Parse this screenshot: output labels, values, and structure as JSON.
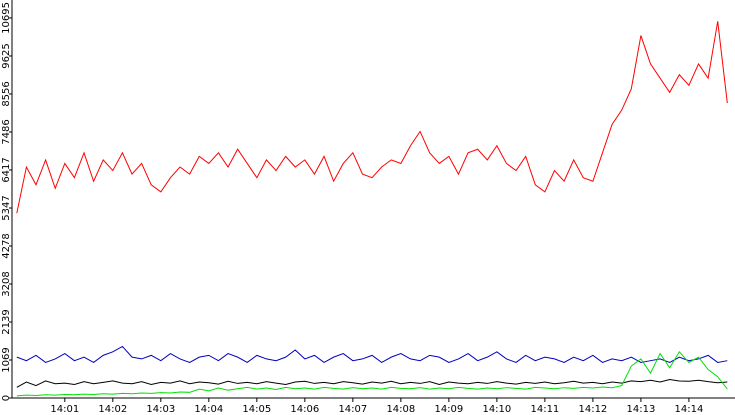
{
  "chart_data": {
    "type": "line",
    "x": [
      0,
      0.2,
      0.4,
      0.6,
      0.8,
      1,
      1.2,
      1.4,
      1.6,
      1.8,
      2,
      2.2,
      2.4,
      2.6,
      2.8,
      3,
      3.2,
      3.4,
      3.6,
      3.8,
      4,
      4.2,
      4.4,
      4.6,
      4.8,
      5,
      5.2,
      5.4,
      5.6,
      5.8,
      6,
      6.2,
      6.4,
      6.6,
      6.8,
      7,
      7.2,
      7.4,
      7.6,
      7.8,
      8,
      8.2,
      8.4,
      8.6,
      8.8,
      9,
      9.2,
      9.4,
      9.6,
      9.8,
      10,
      10.2,
      10.4,
      10.6,
      10.8,
      11,
      11.2,
      11.4,
      11.6,
      11.8,
      12,
      12.2,
      12.4,
      12.6,
      12.8,
      13,
      13.2,
      13.4,
      13.6,
      13.8,
      14,
      14.2,
      14.4,
      14.6,
      14.8
    ],
    "series": [
      {
        "color": "#ff0000",
        "values": [
          5200,
          6500,
          6000,
          6700,
          5900,
          6600,
          6200,
          6900,
          6100,
          6700,
          6400,
          6900,
          6300,
          6600,
          6000,
          5800,
          6200,
          6500,
          6300,
          6800,
          6600,
          6900,
          6500,
          7000,
          6600,
          6200,
          6700,
          6400,
          6800,
          6500,
          6700,
          6300,
          6800,
          6100,
          6600,
          6900,
          6300,
          6200,
          6500,
          6700,
          6600,
          7100,
          7500,
          6900,
          6600,
          6800,
          6300,
          6900,
          7000,
          6700,
          7100,
          6600,
          6400,
          6800,
          6000,
          5800,
          6400,
          6100,
          6700,
          6200,
          6100,
          6900,
          7700,
          8100,
          8700,
          10200,
          9400,
          9000,
          8600,
          9100,
          8800,
          9400,
          9000,
          10600,
          8300
        ]
      },
      {
        "color": "#0000c0",
        "values": [
          1150,
          1050,
          1200,
          1000,
          1100,
          1250,
          1050,
          1150,
          1000,
          1200,
          1300,
          1450,
          1150,
          1100,
          1200,
          1050,
          1250,
          1100,
          1000,
          1150,
          1200,
          1050,
          1250,
          1150,
          1000,
          1200,
          1100,
          1050,
          1150,
          1350,
          1100,
          1200,
          1000,
          1150,
          1250,
          1050,
          1100,
          1200,
          1000,
          1150,
          1250,
          1100,
          1050,
          1200,
          1150,
          1000,
          1100,
          1250,
          1050,
          1150,
          1300,
          1100,
          1000,
          1200,
          1050,
          1150,
          1100,
          1000,
          1150,
          1050,
          1200,
          1000,
          1100,
          1050,
          1150,
          1000,
          1050,
          1100,
          1000,
          1150,
          1050,
          1100,
          1200,
          1000,
          1050
        ]
      },
      {
        "color": "#000000",
        "values": [
          300,
          450,
          350,
          480,
          400,
          420,
          380,
          460,
          400,
          440,
          480,
          420,
          400,
          460,
          380,
          440,
          420,
          480,
          400,
          450,
          430,
          390,
          470,
          410,
          440,
          400,
          460,
          420,
          380,
          450,
          470,
          410,
          440,
          400,
          460,
          430,
          390,
          450,
          420,
          470,
          400,
          440,
          410,
          460,
          380,
          450,
          420,
          400,
          440,
          410,
          460,
          420,
          390,
          440,
          410,
          450,
          400,
          430,
          470,
          420,
          440,
          400,
          450,
          420,
          480,
          460,
          500,
          450,
          520,
          480,
          470,
          500,
          460,
          430,
          450
        ]
      },
      {
        "color": "#00e000",
        "values": [
          60,
          80,
          70,
          90,
          80,
          100,
          90,
          110,
          100,
          120,
          110,
          130,
          120,
          140,
          130,
          150,
          140,
          170,
          160,
          250,
          200,
          280,
          220,
          260,
          300,
          250,
          280,
          240,
          300,
          260,
          280,
          250,
          300,
          270,
          250,
          290,
          260,
          280,
          250,
          300,
          270,
          260,
          290,
          250,
          280,
          260,
          300,
          270,
          250,
          280,
          260,
          290,
          270,
          250,
          300,
          280,
          260,
          290,
          270,
          300,
          280,
          310,
          290,
          350,
          900,
          1100,
          700,
          1250,
          850,
          1300,
          1000,
          1150,
          800,
          600,
          250
        ]
      }
    ],
    "xlim": [
      -0.1,
      14.96
    ],
    "xticks": [
      {
        "value": 1,
        "label": "14:01"
      },
      {
        "value": 2,
        "label": "14:02"
      },
      {
        "value": 3,
        "label": "14:03"
      },
      {
        "value": 4,
        "label": "14:04"
      },
      {
        "value": 5,
        "label": "14:05"
      },
      {
        "value": 6,
        "label": "14:06"
      },
      {
        "value": 7,
        "label": "14:07"
      },
      {
        "value": 8,
        "label": "14:08"
      },
      {
        "value": 9,
        "label": "14:09"
      },
      {
        "value": 10,
        "label": "14:10"
      },
      {
        "value": 11,
        "label": "14:11"
      },
      {
        "value": 12,
        "label": "14:12"
      },
      {
        "value": 13,
        "label": "14:13"
      },
      {
        "value": 14,
        "label": "14:14"
      }
    ],
    "ylim": [
      0,
      11200
    ],
    "yticks": [
      0,
      1069,
      2139,
      3208,
      4278,
      5347,
      6417,
      7486,
      8556,
      9625,
      10695
    ],
    "grid": false
  }
}
